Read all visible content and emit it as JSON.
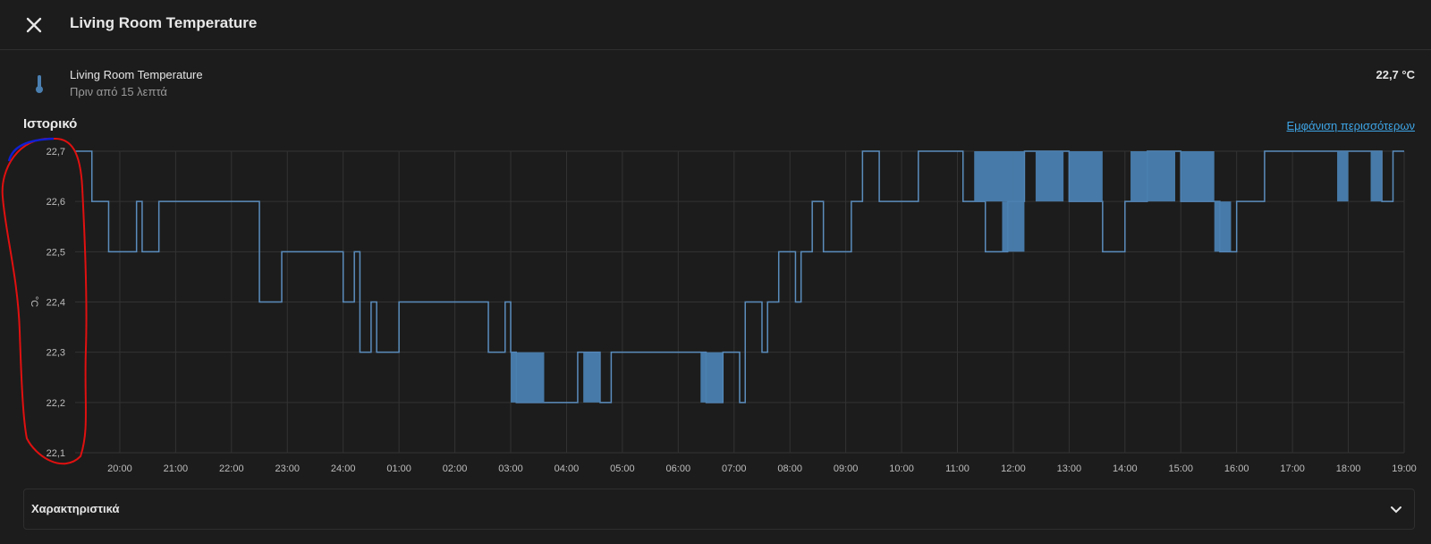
{
  "header": {
    "title": "Living Room Temperature",
    "close_icon": "close-icon"
  },
  "entity": {
    "icon": "thermometer-icon",
    "name": "Living Room Temperature",
    "last_changed": "Πριν από 15 λεπτά",
    "state": "22,7 °C"
  },
  "history": {
    "title": "Ιστορικό",
    "show_more": "Εμφάνιση περισσότερων"
  },
  "attributes": {
    "label": "Χαρακτηριστικά",
    "chevron_icon": "chevron-down-icon"
  },
  "colors": {
    "background": "#1c1c1c",
    "series": "#5b8dbd",
    "link": "#3ea5e6",
    "grid": "#333333",
    "annotation": "#e01010"
  },
  "chart_data": {
    "type": "line",
    "line_shape": "step",
    "ylabel": "°C",
    "ylim": [
      22.1,
      22.7
    ],
    "yticks": [
      "22,7",
      "22,6",
      "22,5",
      "22,4",
      "22,3",
      "22,2",
      "22,1"
    ],
    "x_ticks": [
      "20:00",
      "21:00",
      "22:00",
      "23:00",
      "24:00",
      "01:00",
      "02:00",
      "03:00",
      "04:00",
      "05:00",
      "06:00",
      "07:00",
      "08:00",
      "09:00",
      "10:00",
      "11:00",
      "12:00",
      "13:00",
      "14:00",
      "15:00",
      "16:00",
      "17:00",
      "18:00",
      "19:00"
    ],
    "x_start_hour": 19.2,
    "x_end_hour": 43.0,
    "grid": true,
    "series": [
      {
        "points": [
          [
            19.2,
            22.7
          ],
          [
            19.5,
            22.6
          ],
          [
            19.8,
            22.5
          ],
          [
            20.3,
            22.6
          ],
          [
            20.4,
            22.5
          ],
          [
            20.7,
            22.6
          ],
          [
            21.5,
            22.6
          ],
          [
            22.4,
            22.6
          ],
          [
            22.5,
            22.4
          ],
          [
            22.9,
            22.5
          ],
          [
            23.9,
            22.5
          ],
          [
            24.0,
            22.4
          ],
          [
            24.2,
            22.5
          ],
          [
            24.3,
            22.3
          ],
          [
            24.5,
            22.4
          ],
          [
            24.6,
            22.3
          ],
          [
            25.0,
            22.4
          ],
          [
            26.3,
            22.4
          ],
          [
            26.6,
            22.3
          ],
          [
            26.9,
            22.4
          ],
          [
            27.0,
            22.3
          ],
          [
            27.1,
            22.2
          ],
          [
            27.6,
            22.2
          ],
          [
            28.2,
            22.3
          ],
          [
            28.6,
            22.2
          ],
          [
            28.8,
            22.3
          ],
          [
            30.3,
            22.3
          ],
          [
            30.5,
            22.2
          ],
          [
            30.8,
            22.3
          ],
          [
            31.1,
            22.2
          ],
          [
            31.2,
            22.4
          ],
          [
            31.5,
            22.3
          ],
          [
            31.6,
            22.4
          ],
          [
            31.8,
            22.5
          ],
          [
            32.1,
            22.4
          ],
          [
            32.2,
            22.5
          ],
          [
            32.4,
            22.6
          ],
          [
            32.6,
            22.5
          ],
          [
            33.0,
            22.5
          ],
          [
            33.1,
            22.6
          ],
          [
            33.3,
            22.7
          ],
          [
            33.6,
            22.6
          ],
          [
            34.3,
            22.7
          ],
          [
            34.8,
            22.7
          ],
          [
            35.1,
            22.6
          ],
          [
            35.5,
            22.5
          ],
          [
            35.9,
            22.6
          ],
          [
            36.2,
            22.7
          ],
          [
            37.0,
            22.6
          ],
          [
            37.6,
            22.5
          ],
          [
            38.0,
            22.6
          ],
          [
            38.4,
            22.7
          ],
          [
            39.0,
            22.6
          ],
          [
            39.7,
            22.5
          ],
          [
            40.0,
            22.6
          ],
          [
            40.5,
            22.7
          ],
          [
            41.2,
            22.7
          ],
          [
            42.0,
            22.7
          ],
          [
            42.6,
            22.6
          ],
          [
            42.8,
            22.7
          ],
          [
            43.0,
            22.7
          ]
        ]
      }
    ]
  }
}
